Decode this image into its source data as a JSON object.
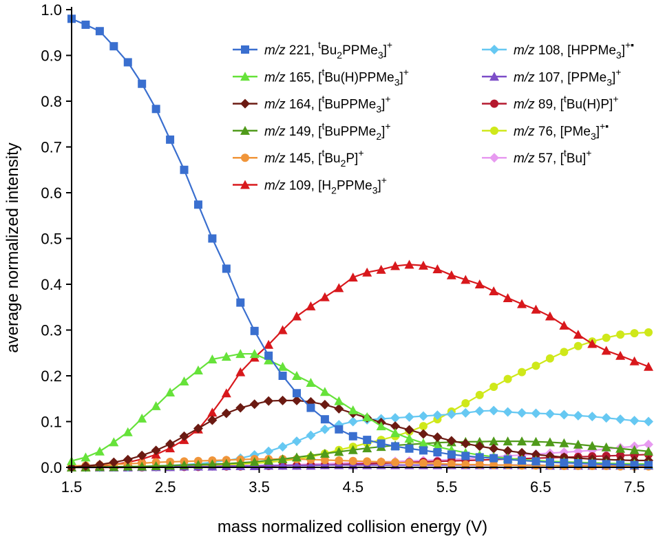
{
  "chart_data": {
    "type": "line",
    "title": "",
    "xlabel": "mass normalized collision energy (V)",
    "ylabel": "average normalized intensity",
    "xlim": [
      1.5,
      7.65
    ],
    "ylim": [
      0,
      1.0
    ],
    "xticks": [
      1.5,
      2.5,
      3.5,
      4.5,
      5.5,
      6.5,
      7.5
    ],
    "xtick_labels": [
      "1.5",
      "2.5",
      "3.5",
      "4.5",
      "5.5",
      "6.5",
      "7.5"
    ],
    "yticks": [
      0,
      0.1,
      0.2,
      0.3,
      0.4,
      0.5,
      0.6,
      0.7,
      0.8,
      0.9,
      1.0
    ],
    "ytick_labels": [
      "0.0",
      "0.1",
      "0.2",
      "0.3",
      "0.4",
      "0.5",
      "0.6",
      "0.7",
      "0.8",
      "0.9",
      "1.0"
    ],
    "x": [
      1.5,
      1.65,
      1.8,
      1.95,
      2.1,
      2.25,
      2.4,
      2.55,
      2.7,
      2.85,
      3.0,
      3.15,
      3.3,
      3.45,
      3.6,
      3.75,
      3.9,
      4.05,
      4.2,
      4.35,
      4.5,
      4.65,
      4.8,
      4.95,
      5.1,
      5.25,
      5.4,
      5.55,
      5.7,
      5.85,
      6.0,
      6.15,
      6.3,
      6.45,
      6.6,
      6.75,
      6.9,
      7.05,
      7.2,
      7.35,
      7.5,
      7.65
    ],
    "legend_position": "top-right",
    "series": [
      {
        "name": "m/z 221",
        "ion_base": "[",
        "ion_parts": [
          [
            "sup",
            "t"
          ],
          [
            "",
            "Bu"
          ],
          [
            "sub",
            "2"
          ],
          [
            "",
            "PPMe"
          ],
          [
            "sub",
            "3"
          ],
          [
            "",
            "]"
          ],
          [
            "sup",
            "+"
          ]
        ],
        "color": "#3a6fcf",
        "marker": "square",
        "values": [
          0.98,
          0.967,
          0.953,
          0.92,
          0.885,
          0.838,
          0.783,
          0.716,
          0.65,
          0.574,
          0.5,
          0.434,
          0.36,
          0.298,
          0.244,
          0.2,
          0.162,
          0.13,
          0.105,
          0.083,
          0.068,
          0.06,
          0.052,
          0.046,
          0.041,
          0.037,
          0.033,
          0.028,
          0.025,
          0.022,
          0.02,
          0.017,
          0.015,
          0.013,
          0.011,
          0.01,
          0.009,
          0.008,
          0.007,
          0.006,
          0.005,
          0.005
        ]
      },
      {
        "name": "m/z 165",
        "ion_parts": [
          [
            "",
            "["
          ],
          [
            "sup",
            "t"
          ],
          [
            "",
            "Bu(H)PPMe"
          ],
          [
            "sub",
            "3"
          ],
          [
            "",
            "]"
          ],
          [
            "sup",
            "+"
          ]
        ],
        "color": "#66e23a",
        "marker": "triangle",
        "values": [
          0.014,
          0.022,
          0.035,
          0.055,
          0.077,
          0.107,
          0.134,
          0.164,
          0.188,
          0.212,
          0.236,
          0.242,
          0.248,
          0.248,
          0.234,
          0.22,
          0.2,
          0.185,
          0.165,
          0.145,
          0.125,
          0.11,
          0.09,
          0.075,
          0.063,
          0.053,
          0.045,
          0.038,
          0.032,
          0.027,
          0.023,
          0.02,
          0.017,
          0.015,
          0.013,
          0.012,
          0.011,
          0.01,
          0.009,
          0.008,
          0.008,
          0.007
        ]
      },
      {
        "name": "m/z 164",
        "ion_parts": [
          [
            "",
            "["
          ],
          [
            "sup",
            "t"
          ],
          [
            "",
            "BuPPMe"
          ],
          [
            "sub",
            "3"
          ],
          [
            "",
            "]"
          ],
          [
            "sup",
            "+"
          ]
        ],
        "color": "#6b1a12",
        "marker": "diamond",
        "values": [
          0.0,
          0.003,
          0.006,
          0.011,
          0.017,
          0.026,
          0.037,
          0.051,
          0.068,
          0.085,
          0.103,
          0.118,
          0.13,
          0.138,
          0.145,
          0.146,
          0.146,
          0.143,
          0.137,
          0.128,
          0.118,
          0.108,
          0.098,
          0.09,
          0.082,
          0.073,
          0.066,
          0.058,
          0.052,
          0.046,
          0.041,
          0.036,
          0.032,
          0.028,
          0.025,
          0.022,
          0.02,
          0.018,
          0.017,
          0.016,
          0.015,
          0.015
        ]
      },
      {
        "name": "m/z 149",
        "ion_parts": [
          [
            "",
            "["
          ],
          [
            "sup",
            "t"
          ],
          [
            "",
            "BuPPMe"
          ],
          [
            "sub",
            "2"
          ],
          [
            "",
            "]"
          ],
          [
            "sup",
            "+"
          ]
        ],
        "color": "#4f9a1a",
        "marker": "triangle",
        "values": [
          0.0,
          0.0,
          0.001,
          0.001,
          0.002,
          0.002,
          0.003,
          0.004,
          0.005,
          0.006,
          0.007,
          0.008,
          0.01,
          0.012,
          0.015,
          0.018,
          0.022,
          0.026,
          0.03,
          0.034,
          0.038,
          0.042,
          0.045,
          0.048,
          0.05,
          0.052,
          0.054,
          0.055,
          0.056,
          0.056,
          0.057,
          0.057,
          0.057,
          0.056,
          0.055,
          0.053,
          0.05,
          0.047,
          0.044,
          0.041,
          0.038,
          0.035
        ]
      },
      {
        "name": "m/z 145",
        "ion_parts": [
          [
            "",
            "["
          ],
          [
            "sup",
            "t"
          ],
          [
            "",
            "Bu"
          ],
          [
            "sub",
            "2"
          ],
          [
            "",
            "P]"
          ],
          [
            "sup",
            "+"
          ]
        ],
        "color": "#f0953a",
        "marker": "circle",
        "values": [
          0.003,
          0.004,
          0.005,
          0.006,
          0.008,
          0.009,
          0.011,
          0.012,
          0.013,
          0.014,
          0.015,
          0.016,
          0.017,
          0.018,
          0.018,
          0.018,
          0.018,
          0.017,
          0.016,
          0.015,
          0.014,
          0.013,
          0.012,
          0.011,
          0.01,
          0.009,
          0.008,
          0.007,
          0.006,
          0.006,
          0.005,
          0.005,
          0.004,
          0.004,
          0.004,
          0.003,
          0.003,
          0.003,
          0.003,
          0.002,
          0.002,
          0.002
        ]
      },
      {
        "name": "m/z 109",
        "ion_parts": [
          [
            "",
            "[H"
          ],
          [
            "sub",
            "2"
          ],
          [
            "",
            "PPMe"
          ],
          [
            "sub",
            "3"
          ],
          [
            "",
            "]"
          ],
          [
            "sup",
            "+"
          ]
        ],
        "color": "#d8181c",
        "marker": "triangle",
        "values": [
          0.0,
          0.001,
          0.003,
          0.006,
          0.011,
          0.018,
          0.028,
          0.042,
          0.06,
          0.083,
          0.12,
          0.162,
          0.208,
          0.24,
          0.268,
          0.3,
          0.33,
          0.352,
          0.372,
          0.392,
          0.415,
          0.426,
          0.432,
          0.44,
          0.443,
          0.441,
          0.433,
          0.42,
          0.41,
          0.4,
          0.385,
          0.37,
          0.357,
          0.345,
          0.33,
          0.31,
          0.29,
          0.27,
          0.255,
          0.244,
          0.232,
          0.22
        ]
      },
      {
        "name": "m/z 108",
        "ion_parts": [
          [
            "",
            "[HPPMe"
          ],
          [
            "sub",
            "3"
          ],
          [
            "",
            "]"
          ],
          [
            "sup",
            "+▪"
          ]
        ],
        "color": "#66c8f2",
        "marker": "diamond",
        "values": [
          0.0,
          0.0,
          0.0,
          0.001,
          0.001,
          0.002,
          0.003,
          0.004,
          0.006,
          0.008,
          0.011,
          0.015,
          0.02,
          0.027,
          0.035,
          0.045,
          0.057,
          0.07,
          0.083,
          0.093,
          0.1,
          0.104,
          0.106,
          0.108,
          0.11,
          0.112,
          0.114,
          0.116,
          0.119,
          0.123,
          0.124,
          0.121,
          0.119,
          0.118,
          0.117,
          0.115,
          0.113,
          0.111,
          0.108,
          0.105,
          0.102,
          0.1
        ]
      },
      {
        "name": "m/z 107",
        "ion_parts": [
          [
            "",
            "[PPMe"
          ],
          [
            "sub",
            "3"
          ],
          [
            "",
            "]"
          ],
          [
            "sup",
            "+"
          ]
        ],
        "color": "#7d4ec8",
        "marker": "triangle",
        "values": [
          0.0,
          0.0,
          0.0,
          0.0,
          0.0,
          0.001,
          0.001,
          0.001,
          0.002,
          0.002,
          0.002,
          0.003,
          0.003,
          0.003,
          0.004,
          0.004,
          0.004,
          0.004,
          0.005,
          0.005,
          0.005,
          0.005,
          0.005,
          0.005,
          0.005,
          0.005,
          0.005,
          0.005,
          0.005,
          0.005,
          0.005,
          0.005,
          0.005,
          0.005,
          0.004,
          0.004,
          0.004,
          0.004,
          0.004,
          0.004,
          0.004,
          0.004
        ]
      },
      {
        "name": "m/z 89",
        "ion_parts": [
          [
            "",
            "["
          ],
          [
            "sup",
            "t"
          ],
          [
            "",
            "Bu(H)P]"
          ],
          [
            "sup",
            "+"
          ]
        ],
        "color": "#b5182e",
        "marker": "circle",
        "values": [
          0.0,
          0.0,
          0.0,
          0.0,
          0.0,
          0.0,
          0.001,
          0.001,
          0.001,
          0.001,
          0.002,
          0.002,
          0.002,
          0.003,
          0.003,
          0.004,
          0.004,
          0.005,
          0.005,
          0.006,
          0.007,
          0.008,
          0.009,
          0.01,
          0.011,
          0.012,
          0.013,
          0.014,
          0.015,
          0.016,
          0.017,
          0.018,
          0.019,
          0.02,
          0.021,
          0.022,
          0.023,
          0.024,
          0.025,
          0.026,
          0.027,
          0.028
        ]
      },
      {
        "name": "m/z 76",
        "ion_parts": [
          [
            "",
            "[PMe"
          ],
          [
            "sub",
            "3"
          ],
          [
            "",
            "]"
          ],
          [
            "sup",
            "+▪"
          ]
        ],
        "color": "#cfe81a",
        "marker": "circle",
        "values": [
          0.0,
          0.0,
          0.001,
          0.001,
          0.001,
          0.002,
          0.002,
          0.003,
          0.003,
          0.004,
          0.005,
          0.006,
          0.007,
          0.009,
          0.011,
          0.014,
          0.018,
          0.023,
          0.03,
          0.038,
          0.045,
          0.053,
          0.06,
          0.068,
          0.078,
          0.09,
          0.105,
          0.122,
          0.14,
          0.158,
          0.176,
          0.193,
          0.208,
          0.222,
          0.238,
          0.252,
          0.265,
          0.275,
          0.283,
          0.29,
          0.293,
          0.295
        ]
      },
      {
        "name": "m/z 57",
        "ion_parts": [
          [
            "",
            "["
          ],
          [
            "sup",
            "t"
          ],
          [
            "",
            "Bu]"
          ],
          [
            "sup",
            "+"
          ]
        ],
        "color": "#e79af0",
        "marker": "diamond",
        "values": [
          0.0,
          0.0,
          0.0,
          0.001,
          0.001,
          0.001,
          0.001,
          0.002,
          0.002,
          0.002,
          0.003,
          0.003,
          0.004,
          0.004,
          0.005,
          0.005,
          0.006,
          0.007,
          0.008,
          0.009,
          0.01,
          0.011,
          0.012,
          0.013,
          0.014,
          0.015,
          0.016,
          0.017,
          0.019,
          0.021,
          0.023,
          0.025,
          0.027,
          0.029,
          0.031,
          0.033,
          0.035,
          0.037,
          0.04,
          0.043,
          0.046,
          0.05
        ]
      }
    ]
  }
}
